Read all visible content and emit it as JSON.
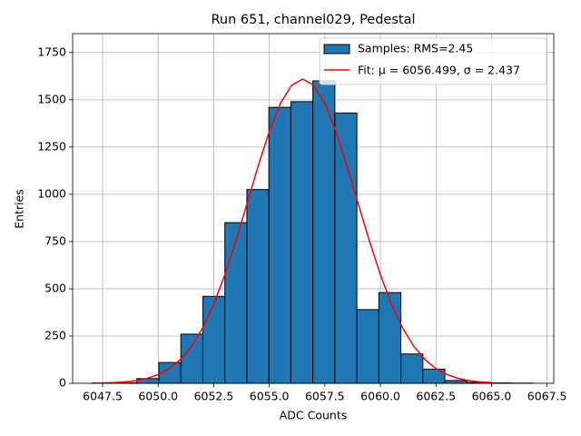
{
  "chart_data": {
    "type": "histogram",
    "title": "Run 651, channel029, Pedestal",
    "x_label": "ADC Counts",
    "y_label": "Entries",
    "name": "Samples: RMS=2.45",
    "color": "#1f77b4",
    "edgecolor": "#000000",
    "bins": [
      6047.06,
      6048.05,
      6049.04,
      6050.03,
      6051.02,
      6052.01,
      6053.0,
      6053.99,
      6054.98,
      6055.97,
      6056.96,
      6057.95,
      6058.94,
      6059.93,
      6060.92,
      6061.91,
      6062.9,
      6063.89,
      6064.88,
      6065.87,
      6066.86
    ],
    "values": [
      1,
      3,
      25,
      110,
      260,
      460,
      850,
      1025,
      1460,
      1490,
      1600,
      1430,
      390,
      480,
      155,
      75,
      15,
      5,
      2,
      1
    ],
    "fit": {
      "type": "line",
      "name": "Fit: μ = 6056.499, σ = 2.437",
      "color": "#ff0000",
      "x": [
        6047,
        6047.5,
        6048,
        6048.5,
        6049,
        6049.5,
        6050,
        6050.5,
        6051,
        6051.5,
        6052,
        6052.5,
        6053,
        6053.5,
        6054,
        6054.5,
        6055,
        6055.5,
        6056,
        6056.5,
        6057,
        6057.5,
        6058,
        6058.5,
        6059,
        6059.5,
        6060,
        6060.5,
        6061,
        6061.5,
        6062,
        6062.5,
        6063,
        6063.5,
        6064,
        6064.5,
        6065
      ],
      "values": [
        0.8,
        1.8,
        3.7,
        7.4,
        14.2,
        26.1,
        46,
        77.8,
        126,
        196,
        293,
        419,
        574,
        755,
        951,
        1150,
        1333,
        1480,
        1576,
        1610,
        1576,
        1480,
        1332,
        1149,
        950,
        755,
        574,
        418,
        293,
        196,
        126,
        78,
        46,
        26,
        14,
        7,
        4
      ]
    },
    "xlim": [
      6046.15,
      6067.8
    ],
    "ylim": [
      0,
      1850
    ],
    "xticks": [
      6047.5,
      {
        "value": 6050,
        "label": "6050.0"
      },
      6052.5,
      {
        "value": 6055,
        "label": "6055.0"
      },
      6057.5,
      {
        "value": 6060,
        "label": "6060.0"
      },
      6062.5,
      {
        "value": 6065,
        "label": "6065.0"
      },
      6067.5
    ],
    "yticks": [
      0,
      250,
      500,
      750,
      1000,
      1250,
      1500,
      1750
    ],
    "grid": true,
    "legend": "upper right"
  }
}
